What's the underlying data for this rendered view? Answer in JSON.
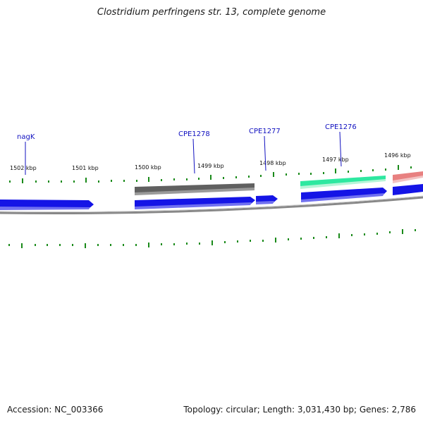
{
  "title": "Clostridium perfringens str. 13, complete genome",
  "footer": {
    "accession": "Accession: NC_003366",
    "summary": "Topology: circular; Length: 3,031,430 bp; Genes: 2,786"
  },
  "scale_labels": [
    "1502 kbp",
    "1501 kbp",
    "1500 kbp",
    "1499 kbp",
    "1498 kbp",
    "1497 kbp",
    "1496 kbp"
  ],
  "gene_labels": [
    "nagK",
    "CPE1278",
    "CPE1277",
    "CPE1276"
  ],
  "colors": {
    "forward_gene": "#1414e6",
    "reverse_gray": "#606060",
    "reverse_green": "#2ee8a0",
    "reverse_pink": "#e88080",
    "tick": "#1a8a1a",
    "label_line": "#1010c0",
    "backbone": "#888888"
  }
}
